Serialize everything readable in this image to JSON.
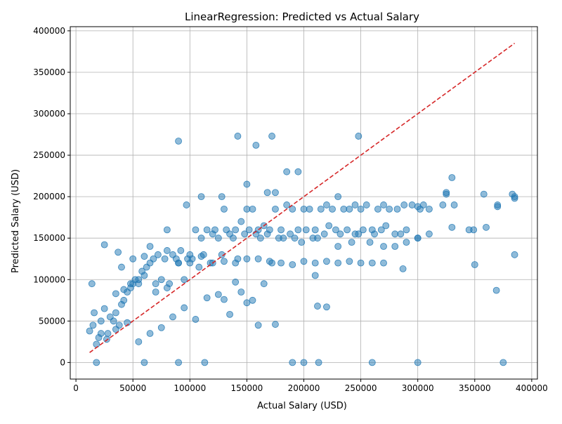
{
  "chart_data": {
    "type": "scatter",
    "title": "LinearRegression: Predicted vs Actual Salary",
    "xlabel": "Actual Salary (USD)",
    "ylabel": "Predicted Salary (USD)",
    "xlim": [
      -5000,
      405000
    ],
    "ylim": [
      -20000,
      405000
    ],
    "xticks": [
      0,
      50000,
      100000,
      150000,
      200000,
      250000,
      300000,
      350000,
      400000
    ],
    "yticks": [
      0,
      50000,
      100000,
      150000,
      200000,
      250000,
      300000,
      350000,
      400000
    ],
    "xtick_labels": [
      "0",
      "50000",
      "100000",
      "150000",
      "200000",
      "250000",
      "300000",
      "350000",
      "400000"
    ],
    "ytick_labels": [
      "0",
      "50000",
      "100000",
      "150000",
      "200000",
      "250000",
      "300000",
      "350000",
      "400000"
    ],
    "grid": true,
    "reference_line": {
      "style": "dashed",
      "color": "#d62728",
      "from": [
        12000,
        12000
      ],
      "to": [
        385000,
        385000
      ]
    },
    "colors": {
      "points": "#1f77b4",
      "reference": "#d62728",
      "grid": "#b0b0b0"
    },
    "series": [
      {
        "x": [
          18000,
          22000,
          27000,
          15000,
          12000,
          20000,
          30000,
          25000,
          35000,
          33000,
          40000,
          45000,
          42000,
          48000,
          50000,
          38000,
          55000,
          52000,
          58000,
          60000,
          62000,
          65000,
          68000,
          70000,
          72000,
          75000,
          78000,
          80000,
          82000,
          85000,
          88000,
          90000,
          92000,
          95000,
          98000,
          100000,
          102000,
          105000,
          108000,
          110000,
          112000,
          115000,
          118000,
          120000,
          122000,
          125000,
          128000,
          130000,
          132000,
          135000,
          138000,
          140000,
          142000,
          145000,
          148000,
          150000,
          152000,
          155000,
          158000,
          160000,
          162000,
          165000,
          168000,
          170000,
          172000,
          175000,
          178000,
          180000,
          182000,
          185000,
          188000,
          190000,
          192000,
          195000,
          198000,
          200000,
          202000,
          205000,
          208000,
          210000,
          212000,
          215000,
          218000,
          220000,
          222000,
          225000,
          228000,
          230000,
          232000,
          235000,
          238000,
          240000,
          242000,
          245000,
          248000,
          250000,
          252000,
          255000,
          258000,
          260000,
          262000,
          265000,
          268000,
          270000,
          272000,
          275000,
          280000,
          282000,
          285000,
          288000,
          290000,
          295000,
          300000,
          302000,
          305000,
          310000,
          322000,
          325000,
          330000,
          332000,
          345000,
          350000,
          358000,
          360000,
          370000,
          383000,
          385000,
          385000,
          18000,
          60000,
          90000,
          113000,
          190000,
          200000,
          213000,
          260000,
          300000,
          375000,
          25000,
          37000,
          90000,
          142000,
          158000,
          172000,
          248000,
          220000,
          212000,
          160000,
          175000,
          150000,
          140000,
          155000,
          165000,
          130000,
          135000,
          145000,
          125000,
          115000,
          105000,
          95000,
          85000,
          75000,
          65000,
          55000,
          45000,
          35000,
          28000,
          22000,
          16000,
          14000,
          40000,
          50000,
          60000,
          70000,
          80000,
          90000,
          100000,
          110000,
          120000,
          130000,
          140000,
          150000,
          160000,
          170000,
          180000,
          190000,
          200000,
          210000,
          220000,
          230000,
          240000,
          250000,
          260000,
          270000,
          280000,
          290000,
          300000,
          310000,
          325000,
          330000,
          370000,
          369000,
          385000,
          349000,
          300000,
          287000,
          270000,
          245000,
          230000,
          210000,
          195000,
          185000,
          175000,
          168000,
          150000,
          128000,
          110000,
          97000,
          80000,
          65000,
          55000,
          48000,
          42000,
          35000
        ],
        "y": [
          22000,
          35000,
          28000,
          45000,
          38000,
          30000,
          55000,
          65000,
          60000,
          50000,
          70000,
          85000,
          75000,
          90000,
          95000,
          45000,
          95000,
          100000,
          110000,
          105000,
          115000,
          120000,
          125000,
          85000,
          130000,
          100000,
          125000,
          135000,
          95000,
          130000,
          125000,
          120000,
          135000,
          100000,
          125000,
          130000,
          125000,
          160000,
          115000,
          150000,
          130000,
          160000,
          120000,
          155000,
          160000,
          150000,
          130000,
          185000,
          160000,
          155000,
          150000,
          160000,
          125000,
          170000,
          155000,
          185000,
          160000,
          185000,
          155000,
          160000,
          150000,
          165000,
          155000,
          160000,
          120000,
          185000,
          150000,
          160000,
          150000,
          190000,
          155000,
          185000,
          150000,
          160000,
          145000,
          185000,
          160000,
          185000,
          150000,
          160000,
          150000,
          185000,
          155000,
          190000,
          165000,
          185000,
          160000,
          200000,
          155000,
          185000,
          160000,
          185000,
          145000,
          190000,
          155000,
          185000,
          160000,
          190000,
          145000,
          160000,
          155000,
          185000,
          160000,
          190000,
          165000,
          185000,
          155000,
          185000,
          155000,
          190000,
          160000,
          190000,
          150000,
          185000,
          190000,
          185000,
          190000,
          203000,
          163000,
          190000,
          160000,
          118000,
          203000,
          163000,
          188000,
          203000,
          198000,
          130000,
          0,
          0,
          0,
          0,
          0,
          0,
          0,
          0,
          0,
          0,
          142000,
          133000,
          267000,
          273000,
          262000,
          273000,
          273000,
          67000,
          68000,
          45000,
          46000,
          72000,
          97000,
          75000,
          95000,
          76000,
          58000,
          85000,
          82000,
          78000,
          52000,
          66000,
          55000,
          42000,
          35000,
          25000,
          48000,
          40000,
          35000,
          50000,
          60000,
          95000,
          115000,
          125000,
          128000,
          95000,
          90000,
          120000,
          120000,
          128000,
          120000,
          122000,
          120000,
          125000,
          125000,
          122000,
          120000,
          118000,
          122000,
          120000,
          122000,
          120000,
          122000,
          120000,
          120000,
          120000,
          140000,
          145000,
          150000,
          155000,
          205000,
          223000,
          190000,
          87000,
          200000,
          160000,
          188000,
          113000,
          140000,
          155000,
          140000,
          105000,
          230000,
          230000,
          205000,
          205000,
          215000,
          200000,
          200000,
          190000,
          160000,
          140000,
          100000,
          95000,
          88000,
          83000
        ]
      }
    ]
  }
}
